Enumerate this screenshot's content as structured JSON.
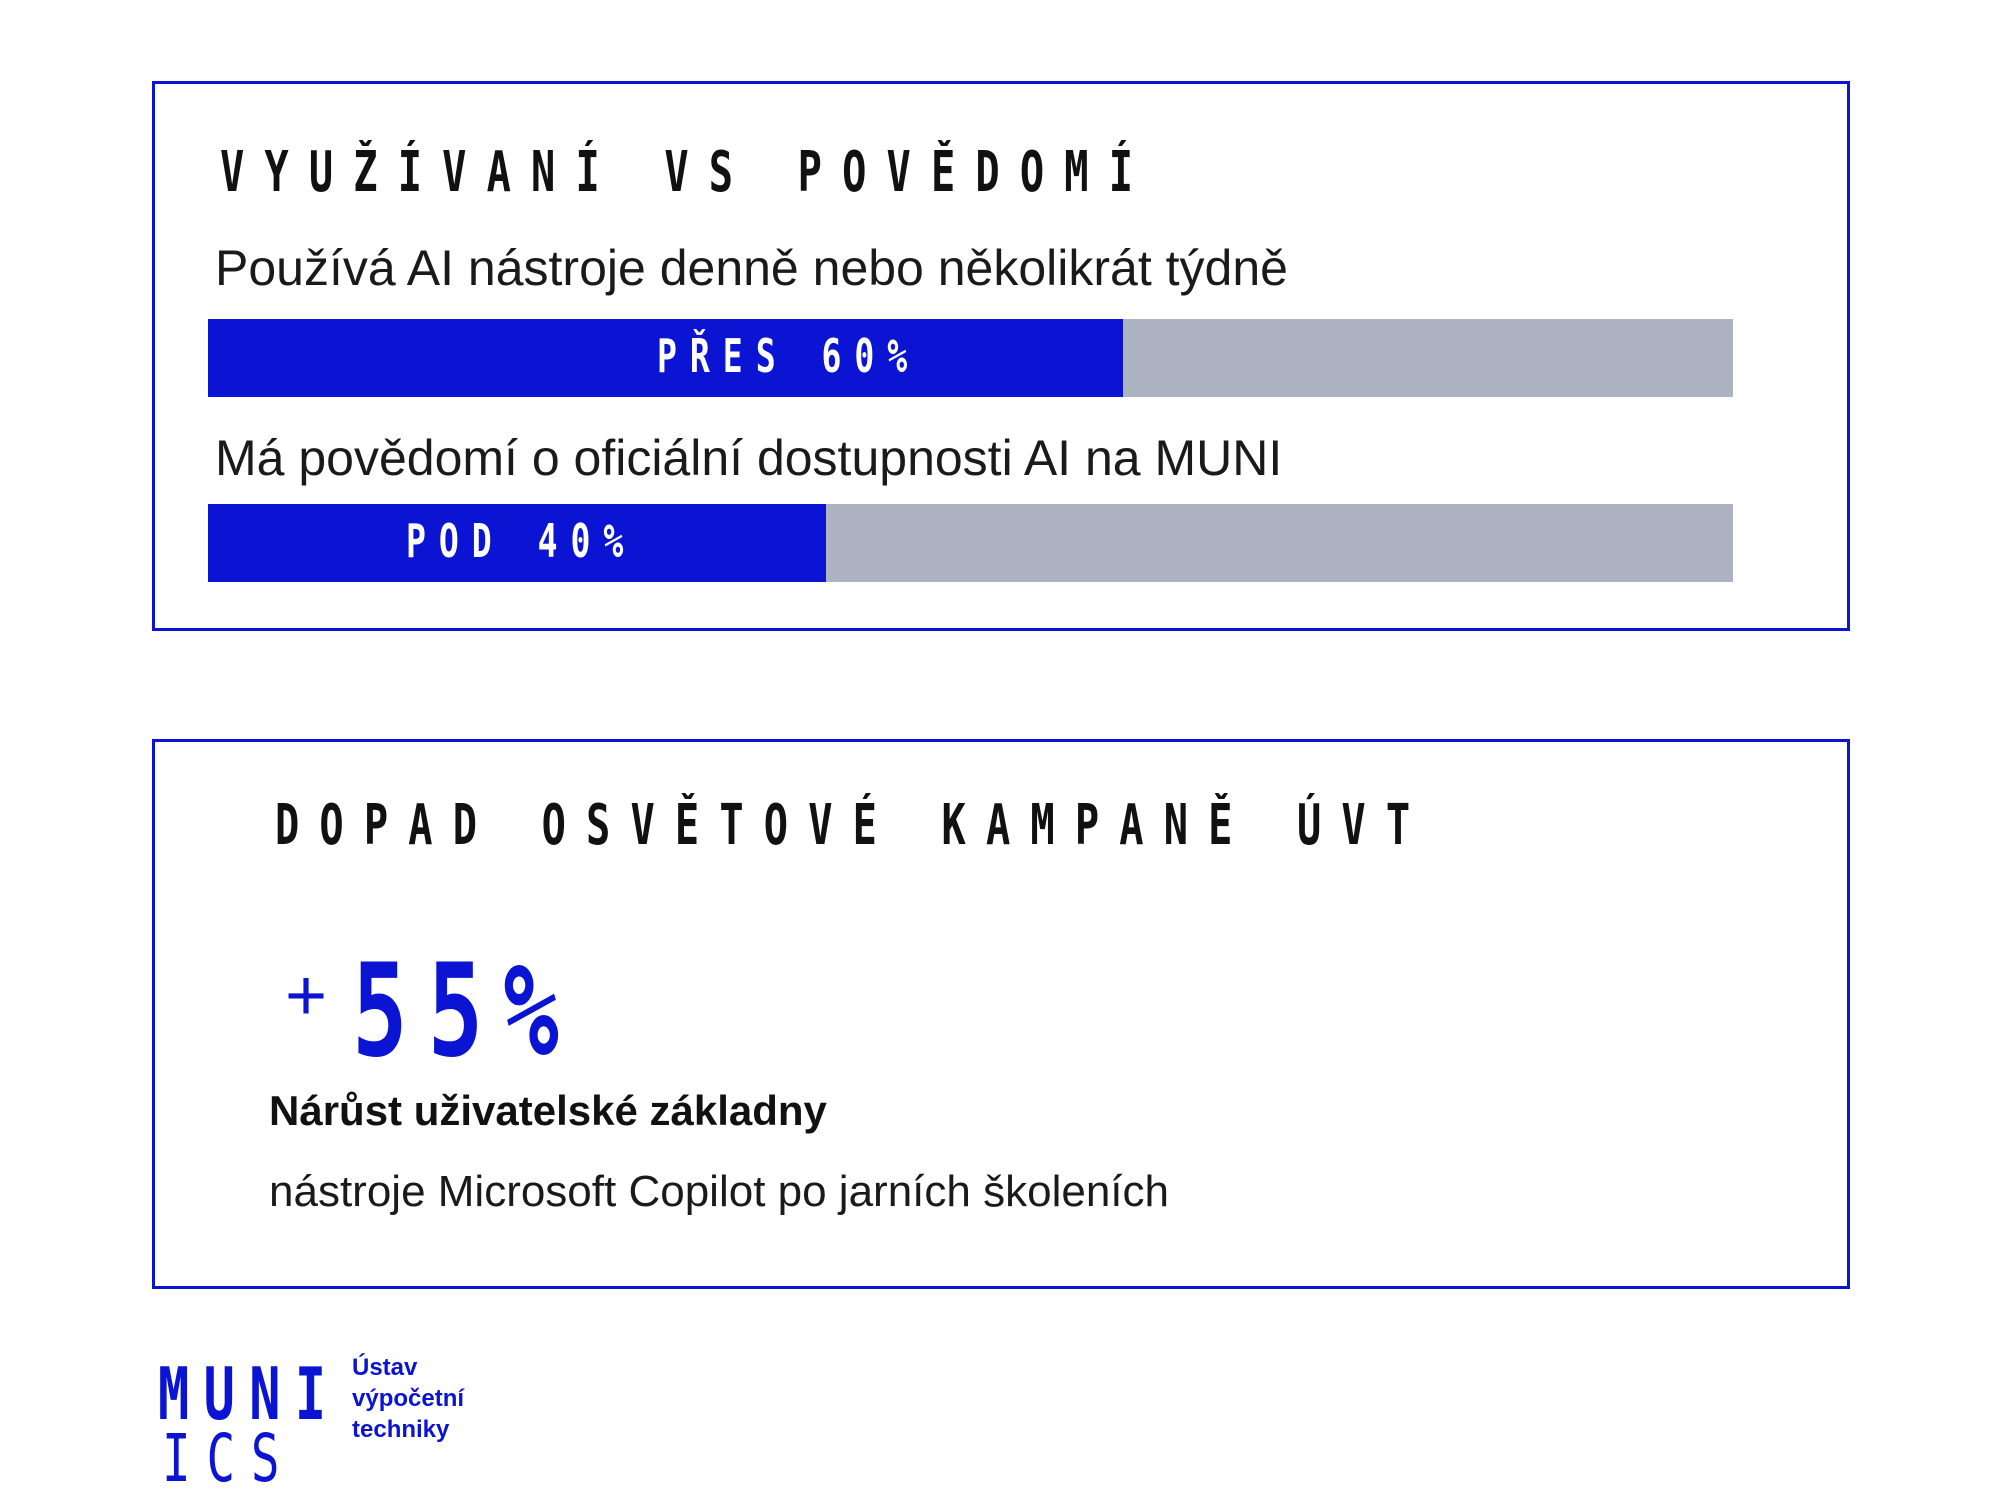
{
  "panel_usage": {
    "title": "VYUŽÍVANÍ VS POVĚDOMÍ",
    "bars": [
      {
        "label": "Používá AI nástroje denně nebo několikrát týdně",
        "value_text": "PŘES 60%",
        "fill_fraction": 0.6
      },
      {
        "label": "Má povědomí o oficiální dostupnosti AI na MUNI",
        "value_text": "POD 40%",
        "fill_fraction": 0.405
      }
    ],
    "colors": {
      "fill": "#0a14d2",
      "track": "#adb3c1"
    }
  },
  "panel_campaign": {
    "title": "DOPAD OSVĚTOVÉ KAMPANĚ ÚVT",
    "stat_sign": "+",
    "stat_value": "55%",
    "subtitle": "Nárůst uživatelské základny",
    "description": "nástroje Microsoft Copilot po jarních školeních"
  },
  "logo": {
    "line1": "MUNI",
    "line2": "ICS",
    "org_lines": [
      "Ústav",
      "výpočetní",
      "techniky"
    ]
  },
  "accent_color": "#0a14d2"
}
